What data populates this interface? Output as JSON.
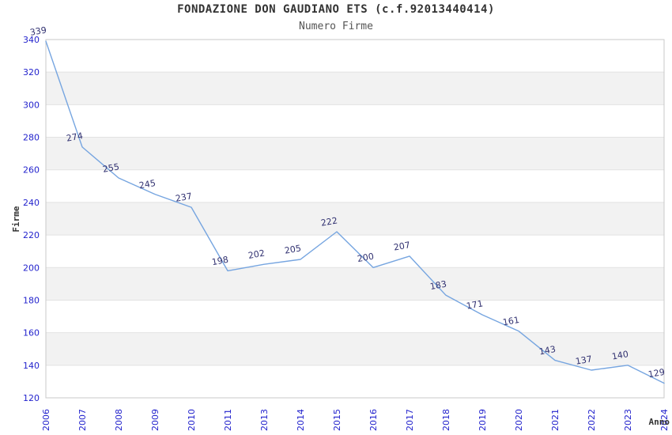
{
  "chart_data": {
    "type": "line",
    "title": "FONDAZIONE DON GAUDIANO ETS (c.f.92013440414)",
    "subtitle": "Numero Firme",
    "xlabel": "Anno",
    "ylabel": "Firme",
    "categories": [
      "2006",
      "2007",
      "2008",
      "2009",
      "2010",
      "2011",
      "2013",
      "2014",
      "2015",
      "2016",
      "2017",
      "2018",
      "2019",
      "2020",
      "2021",
      "2022",
      "2023",
      "2024"
    ],
    "values": [
      339,
      274,
      255,
      245,
      237,
      198,
      202,
      205,
      222,
      200,
      207,
      183,
      171,
      161,
      143,
      137,
      140,
      129
    ],
    "ylim": [
      120,
      340
    ],
    "ytick_step": 20,
    "yticks": [
      120,
      140,
      160,
      180,
      200,
      220,
      240,
      260,
      280,
      300,
      320,
      340
    ],
    "grid": "horizontal-with-alternating-bands",
    "legend": "none",
    "data_labels_shown": true,
    "colors": {
      "line": "#76a5e0",
      "tick_label": "#2323cd",
      "data_label": "#303070",
      "band": "#f2f2f2",
      "gridline": "#e2e2e2",
      "border": "#c9c9c9",
      "title": "#333333",
      "subtitle": "#555555",
      "axis_title": "#333333",
      "background": "#ffffff"
    }
  }
}
